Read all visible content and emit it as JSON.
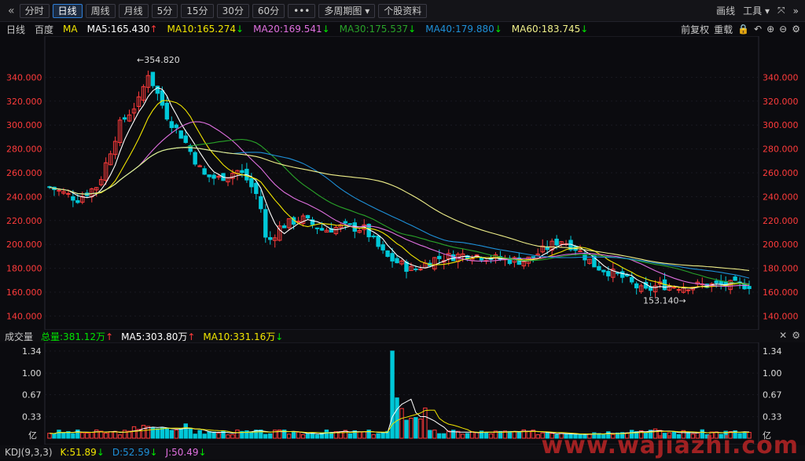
{
  "toolbar": {
    "collapse_glyph": "«",
    "periods": [
      "分时",
      "日线",
      "周线",
      "月线",
      "5分",
      "15分",
      "30分",
      "60分"
    ],
    "active_period": "日线",
    "more": "•••",
    "multi_period": "多周期图",
    "stock_info": "个股资料",
    "draw": "画线",
    "tools": "工具",
    "expand_glyph": "»"
  },
  "legend": {
    "period": "日线",
    "name": "百度",
    "ma_label": "MA",
    "ma": [
      {
        "label": "MA5:165.430",
        "dir": "up",
        "color": "#ffffff"
      },
      {
        "label": "MA10:165.274",
        "dir": "dn",
        "color": "#f2e600"
      },
      {
        "label": "MA20:169.541",
        "dir": "dn",
        "color": "#e070e0"
      },
      {
        "label": "MA30:175.537",
        "dir": "dn",
        "color": "#29a329"
      },
      {
        "label": "MA40:179.880",
        "dir": "dn",
        "color": "#1e90d8"
      },
      {
        "label": "MA60:183.745",
        "dir": "dn",
        "color": "#f0f08a"
      }
    ],
    "adjust": "前复权",
    "reset": "重载"
  },
  "price_axis": [
    "340.000",
    "320.000",
    "300.000",
    "280.000",
    "260.000",
    "240.000",
    "220.000",
    "200.000",
    "180.000",
    "160.000",
    "140.000"
  ],
  "annotations": {
    "high": "354.820",
    "low": "153.140"
  },
  "volume": {
    "label": "成交量",
    "total": "总量:381.12万",
    "ma5": "MA5:303.80万",
    "ma10": "MA10:331.16万",
    "axis": [
      "1.34",
      "1.00",
      "0.67",
      "0.33"
    ],
    "unit": "亿"
  },
  "kdj": {
    "label": "KDJ(9,3,3)",
    "k": "K:51.89",
    "d": "D:52.59",
    "j": "J:50.49"
  },
  "colors": {
    "up": "#ff3b3b",
    "down": "#00c8d8",
    "bg": "#0b0b0f"
  },
  "watermark": "www.wajiazhi.com"
}
